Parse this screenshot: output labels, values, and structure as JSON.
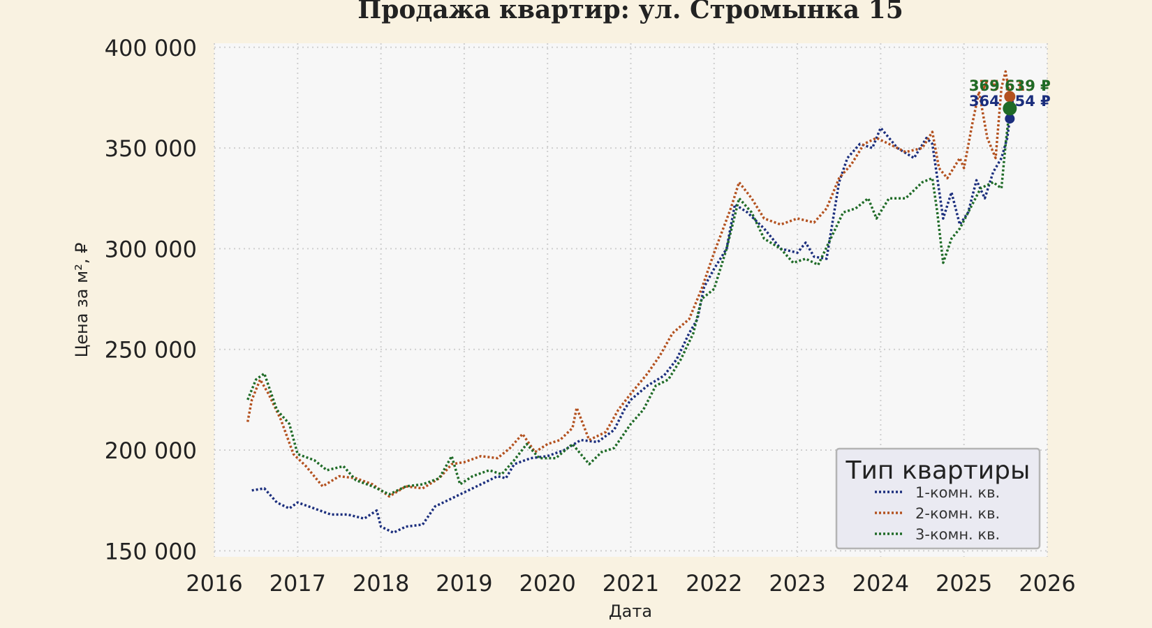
{
  "chart_data": {
    "type": "line",
    "title": "Продажа квартир: ул. Стромынка 15",
    "xlabel": "Дата",
    "ylabel": "Цена за м², ₽",
    "x_ticks": [
      "2016",
      "2017",
      "2018",
      "2019",
      "2020",
      "2021",
      "2022",
      "2023",
      "2024",
      "2025",
      "2026"
    ],
    "y_ticks": [
      "150 000",
      "200 000",
      "250 000",
      "300 000",
      "350 000",
      "400 000"
    ],
    "xlim": [
      2016.0,
      2026.0
    ],
    "ylim": [
      147000,
      402000
    ],
    "grid": true,
    "line_style": "dotted",
    "legend": {
      "title": "Тип квартиры",
      "position": "bottom-right"
    },
    "series": [
      {
        "name": "1-комн. кв.",
        "color": "#1b2e7d",
        "end_label": "364 554 ₽",
        "end_point": [
          2025.55,
          364554
        ],
        "points": [
          [
            2016.45,
            180000
          ],
          [
            2016.6,
            181000
          ],
          [
            2016.75,
            174000
          ],
          [
            2016.9,
            171000
          ],
          [
            2017.0,
            174000
          ],
          [
            2017.2,
            171000
          ],
          [
            2017.4,
            168000
          ],
          [
            2017.6,
            168000
          ],
          [
            2017.8,
            166000
          ],
          [
            2017.95,
            170000
          ],
          [
            2018.0,
            162000
          ],
          [
            2018.15,
            159000
          ],
          [
            2018.3,
            162000
          ],
          [
            2018.5,
            163000
          ],
          [
            2018.65,
            172000
          ],
          [
            2018.8,
            175000
          ],
          [
            2019.0,
            179000
          ],
          [
            2019.2,
            183000
          ],
          [
            2019.4,
            187000
          ],
          [
            2019.5,
            186000
          ],
          [
            2019.6,
            193000
          ],
          [
            2019.8,
            196000
          ],
          [
            2020.0,
            197000
          ],
          [
            2020.2,
            200000
          ],
          [
            2020.4,
            205000
          ],
          [
            2020.6,
            204000
          ],
          [
            2020.8,
            210000
          ],
          [
            2020.92,
            220000
          ],
          [
            2021.0,
            225000
          ],
          [
            2021.2,
            232000
          ],
          [
            2021.4,
            237000
          ],
          [
            2021.55,
            245000
          ],
          [
            2021.7,
            258000
          ],
          [
            2021.8,
            265000
          ],
          [
            2021.88,
            281000
          ],
          [
            2022.0,
            290000
          ],
          [
            2022.15,
            300000
          ],
          [
            2022.25,
            322000
          ],
          [
            2022.4,
            318000
          ],
          [
            2022.6,
            310000
          ],
          [
            2022.8,
            300000
          ],
          [
            2023.0,
            298000
          ],
          [
            2023.1,
            303000
          ],
          [
            2023.2,
            296000
          ],
          [
            2023.35,
            295000
          ],
          [
            2023.5,
            333000
          ],
          [
            2023.6,
            345000
          ],
          [
            2023.75,
            352000
          ],
          [
            2023.9,
            350000
          ],
          [
            2024.0,
            360000
          ],
          [
            2024.2,
            350000
          ],
          [
            2024.4,
            345000
          ],
          [
            2024.55,
            355000
          ],
          [
            2024.62,
            352000
          ],
          [
            2024.75,
            315000
          ],
          [
            2024.85,
            328000
          ],
          [
            2024.95,
            312000
          ],
          [
            2025.05,
            318000
          ],
          [
            2025.15,
            334000
          ],
          [
            2025.25,
            325000
          ],
          [
            2025.35,
            338000
          ],
          [
            2025.45,
            345000
          ],
          [
            2025.52,
            355000
          ],
          [
            2025.55,
            364554
          ]
        ]
      },
      {
        "name": "2-комн. кв.",
        "color": "#b3511f",
        "end_label": "375 519 ₽",
        "end_point": [
          2025.55,
          375519
        ],
        "points": [
          [
            2016.4,
            214000
          ],
          [
            2016.45,
            225000
          ],
          [
            2016.55,
            235000
          ],
          [
            2016.65,
            228000
          ],
          [
            2016.8,
            215000
          ],
          [
            2016.95,
            198000
          ],
          [
            2017.1,
            192000
          ],
          [
            2017.3,
            182000
          ],
          [
            2017.5,
            187000
          ],
          [
            2017.7,
            186000
          ],
          [
            2017.9,
            183000
          ],
          [
            2018.1,
            177000
          ],
          [
            2018.3,
            182000
          ],
          [
            2018.5,
            181000
          ],
          [
            2018.7,
            186000
          ],
          [
            2018.85,
            193000
          ],
          [
            2019.0,
            194000
          ],
          [
            2019.2,
            197000
          ],
          [
            2019.4,
            196000
          ],
          [
            2019.55,
            201000
          ],
          [
            2019.7,
            208000
          ],
          [
            2019.85,
            199000
          ],
          [
            2020.0,
            203000
          ],
          [
            2020.15,
            205000
          ],
          [
            2020.3,
            211000
          ],
          [
            2020.35,
            221000
          ],
          [
            2020.5,
            205000
          ],
          [
            2020.7,
            209000
          ],
          [
            2020.85,
            220000
          ],
          [
            2021.0,
            228000
          ],
          [
            2021.2,
            238000
          ],
          [
            2021.35,
            247000
          ],
          [
            2021.5,
            258000
          ],
          [
            2021.7,
            265000
          ],
          [
            2021.85,
            280000
          ],
          [
            2022.0,
            298000
          ],
          [
            2022.2,
            320000
          ],
          [
            2022.3,
            333000
          ],
          [
            2022.45,
            325000
          ],
          [
            2022.6,
            315000
          ],
          [
            2022.8,
            312000
          ],
          [
            2023.0,
            315000
          ],
          [
            2023.2,
            313000
          ],
          [
            2023.35,
            320000
          ],
          [
            2023.5,
            335000
          ],
          [
            2023.65,
            342000
          ],
          [
            2023.8,
            352000
          ],
          [
            2023.95,
            355000
          ],
          [
            2024.1,
            352000
          ],
          [
            2024.3,
            348000
          ],
          [
            2024.5,
            350000
          ],
          [
            2024.62,
            358000
          ],
          [
            2024.7,
            340000
          ],
          [
            2024.8,
            335000
          ],
          [
            2024.95,
            345000
          ],
          [
            2025.0,
            340000
          ],
          [
            2025.1,
            362000
          ],
          [
            2025.18,
            378000
          ],
          [
            2025.28,
            355000
          ],
          [
            2025.38,
            345000
          ],
          [
            2025.45,
            380000
          ],
          [
            2025.5,
            388000
          ],
          [
            2025.55,
            375519
          ]
        ]
      },
      {
        "name": "3-комн. кв.",
        "color": "#1f6b27",
        "end_label": "369 639 ₽",
        "end_point": [
          2025.55,
          369639
        ],
        "points": [
          [
            2016.4,
            225000
          ],
          [
            2016.5,
            235000
          ],
          [
            2016.6,
            238000
          ],
          [
            2016.75,
            220000
          ],
          [
            2016.9,
            213000
          ],
          [
            2017.0,
            198000
          ],
          [
            2017.2,
            195000
          ],
          [
            2017.35,
            190000
          ],
          [
            2017.55,
            192000
          ],
          [
            2017.7,
            185000
          ],
          [
            2017.9,
            182000
          ],
          [
            2018.1,
            178000
          ],
          [
            2018.3,
            182000
          ],
          [
            2018.5,
            183000
          ],
          [
            2018.7,
            186000
          ],
          [
            2018.85,
            197000
          ],
          [
            2018.95,
            183000
          ],
          [
            2019.1,
            187000
          ],
          [
            2019.3,
            190000
          ],
          [
            2019.45,
            188000
          ],
          [
            2019.6,
            195000
          ],
          [
            2019.75,
            203000
          ],
          [
            2019.9,
            196000
          ],
          [
            2020.1,
            196000
          ],
          [
            2020.3,
            203000
          ],
          [
            2020.4,
            198000
          ],
          [
            2020.5,
            193000
          ],
          [
            2020.65,
            199000
          ],
          [
            2020.8,
            201000
          ],
          [
            2021.0,
            213000
          ],
          [
            2021.15,
            220000
          ],
          [
            2021.3,
            232000
          ],
          [
            2021.45,
            235000
          ],
          [
            2021.6,
            245000
          ],
          [
            2021.75,
            258000
          ],
          [
            2021.85,
            275000
          ],
          [
            2022.0,
            280000
          ],
          [
            2022.15,
            300000
          ],
          [
            2022.3,
            325000
          ],
          [
            2022.45,
            318000
          ],
          [
            2022.6,
            305000
          ],
          [
            2022.8,
            300000
          ],
          [
            2022.95,
            293000
          ],
          [
            2023.1,
            295000
          ],
          [
            2023.25,
            292000
          ],
          [
            2023.4,
            305000
          ],
          [
            2023.55,
            318000
          ],
          [
            2023.7,
            320000
          ],
          [
            2023.85,
            325000
          ],
          [
            2023.95,
            315000
          ],
          [
            2024.1,
            325000
          ],
          [
            2024.3,
            325000
          ],
          [
            2024.5,
            333000
          ],
          [
            2024.62,
            335000
          ],
          [
            2024.68,
            318000
          ],
          [
            2024.75,
            293000
          ],
          [
            2024.85,
            305000
          ],
          [
            2024.95,
            310000
          ],
          [
            2025.05,
            318000
          ],
          [
            2025.2,
            330000
          ],
          [
            2025.35,
            333000
          ],
          [
            2025.45,
            330000
          ],
          [
            2025.5,
            352000
          ],
          [
            2025.55,
            369639
          ]
        ]
      }
    ]
  }
}
